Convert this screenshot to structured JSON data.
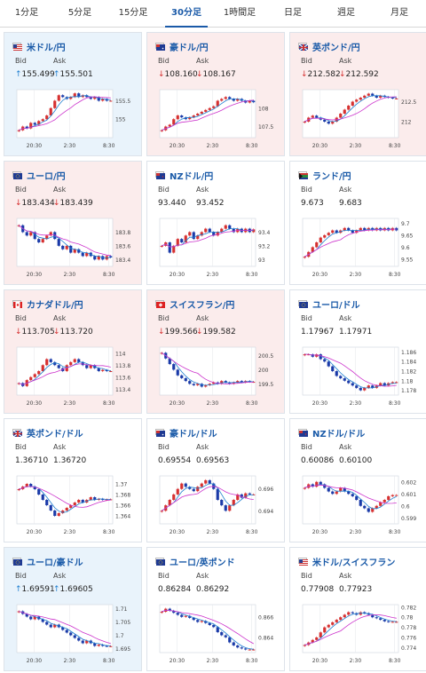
{
  "tabs": [
    {
      "label": "1分足",
      "active": false
    },
    {
      "label": "5分足",
      "active": false
    },
    {
      "label": "15分足",
      "active": false
    },
    {
      "label": "30分足",
      "active": true
    },
    {
      "label": "1時間足",
      "active": false
    },
    {
      "label": "日足",
      "active": false
    },
    {
      "label": "週足",
      "active": false
    },
    {
      "label": "月足",
      "active": false
    }
  ],
  "labels": {
    "bid": "Bid",
    "ask": "Ask"
  },
  "colors": {
    "up": "#1f7fd0",
    "down": "#d63030",
    "bull_candle": "#d63030",
    "bear_candle": "#1a3aa8",
    "ma_line": "#cc33cc",
    "link": "#1a5aa8"
  },
  "cards": [
    {
      "title": "米ドル/円",
      "direction": "up",
      "bid": "155.499",
      "ask": "155.501",
      "flag": "us-flag",
      "chart_data": {
        "type": "candlestick",
        "x_ticks": [
          "20:30",
          "2:30",
          "8:30"
        ],
        "y_ticks": [
          "155.5",
          "155"
        ],
        "ylim": [
          154.5,
          155.8
        ],
        "closes": [
          154.7,
          154.8,
          154.75,
          154.9,
          154.85,
          154.95,
          155.0,
          155.1,
          155.3,
          155.5,
          155.65,
          155.6,
          155.55,
          155.6,
          155.7,
          155.6,
          155.65,
          155.6,
          155.55,
          155.6,
          155.5,
          155.55,
          155.5,
          155.5
        ]
      }
    },
    {
      "title": "豪ドル/円",
      "direction": "down",
      "bid": "108.160",
      "ask": "108.167",
      "flag": "au-flag",
      "chart_data": {
        "type": "candlestick",
        "x_ticks": [
          "20:30",
          "2:30",
          "8:30"
        ],
        "y_ticks": [
          "108",
          "107.5"
        ],
        "ylim": [
          107.2,
          108.5
        ],
        "closes": [
          107.4,
          107.5,
          107.55,
          107.7,
          107.8,
          107.75,
          107.7,
          107.75,
          107.8,
          107.85,
          107.9,
          107.95,
          108.0,
          108.05,
          108.2,
          108.25,
          108.3,
          108.25,
          108.2,
          108.25,
          108.2,
          108.15,
          108.2,
          108.16
        ]
      }
    },
    {
      "title": "英ポンド/円",
      "direction": "down",
      "bid": "212.582",
      "ask": "212.592",
      "flag": "gb-flag",
      "chart_data": {
        "type": "candlestick",
        "x_ticks": [
          "20:30",
          "2:30",
          "8:30"
        ],
        "y_ticks": [
          "212.5",
          "212"
        ],
        "ylim": [
          211.6,
          212.8
        ],
        "closes": [
          212.0,
          212.1,
          212.15,
          212.1,
          212.05,
          212.0,
          211.95,
          212.0,
          212.1,
          212.2,
          212.3,
          212.4,
          212.5,
          212.55,
          212.6,
          212.65,
          212.7,
          212.65,
          212.6,
          212.65,
          212.62,
          212.6,
          212.58,
          212.58
        ]
      }
    },
    {
      "title": "ユーロ/円",
      "direction": "down",
      "bid": "183.434",
      "ask": "183.439",
      "flag": "eu-flag",
      "chart_data": {
        "type": "candlestick",
        "x_ticks": [
          "20:30",
          "2:30",
          "8:30"
        ],
        "y_ticks": [
          "183.8",
          "183.6",
          "183.4"
        ],
        "ylim": [
          183.3,
          184.0
        ],
        "closes": [
          183.9,
          183.8,
          183.75,
          183.8,
          183.7,
          183.65,
          183.7,
          183.75,
          183.8,
          183.7,
          183.6,
          183.55,
          183.6,
          183.5,
          183.55,
          183.5,
          183.45,
          183.5,
          183.45,
          183.4,
          183.45,
          183.4,
          183.45,
          183.43
        ]
      }
    },
    {
      "title": "NZドル/円",
      "direction": "flat",
      "bid": "93.440",
      "ask": "93.452",
      "flag": "nz-flag",
      "chart_data": {
        "type": "candlestick",
        "x_ticks": [
          "20:30",
          "2:30",
          "8:30"
        ],
        "y_ticks": [
          "93.4",
          "93.2",
          "93"
        ],
        "ylim": [
          92.9,
          93.6
        ],
        "closes": [
          93.2,
          93.25,
          93.1,
          93.2,
          93.3,
          93.25,
          93.35,
          93.4,
          93.3,
          93.35,
          93.4,
          93.45,
          93.4,
          93.35,
          93.4,
          93.45,
          93.5,
          93.45,
          93.4,
          93.45,
          93.4,
          93.45,
          93.4,
          93.44
        ]
      }
    },
    {
      "title": "ランド/円",
      "direction": "flat",
      "bid": "9.673",
      "ask": "9.683",
      "flag": "za-flag",
      "chart_data": {
        "type": "candlestick",
        "x_ticks": [
          "20:30",
          "2:30",
          "8:30"
        ],
        "y_ticks": [
          "9.7",
          "9.65",
          "9.6",
          "9.55"
        ],
        "ylim": [
          9.52,
          9.72
        ],
        "closes": [
          9.56,
          9.58,
          9.6,
          9.62,
          9.64,
          9.65,
          9.66,
          9.67,
          9.66,
          9.67,
          9.68,
          9.67,
          9.66,
          9.67,
          9.68,
          9.67,
          9.68,
          9.67,
          9.68,
          9.67,
          9.68,
          9.67,
          9.68,
          9.67
        ]
      }
    },
    {
      "title": "カナダドル/円",
      "direction": "down",
      "bid": "113.705",
      "ask": "113.720",
      "flag": "ca-flag",
      "chart_data": {
        "type": "candlestick",
        "x_ticks": [
          "20:30",
          "2:30",
          "8:30"
        ],
        "y_ticks": [
          "114",
          "113.8",
          "113.6",
          "113.4"
        ],
        "ylim": [
          113.3,
          114.1
        ],
        "closes": [
          113.5,
          113.45,
          113.55,
          113.6,
          113.65,
          113.7,
          113.8,
          113.9,
          113.85,
          113.8,
          113.75,
          113.7,
          113.8,
          113.85,
          113.9,
          113.85,
          113.8,
          113.75,
          113.8,
          113.75,
          113.7,
          113.72,
          113.7,
          113.7
        ]
      }
    },
    {
      "title": "スイスフラン/円",
      "direction": "down",
      "bid": "199.566",
      "ask": "199.582",
      "flag": "ch-flag",
      "chart_data": {
        "type": "candlestick",
        "x_ticks": [
          "20:30",
          "2:30",
          "8:30"
        ],
        "y_ticks": [
          "200.5",
          "200",
          "199.5"
        ],
        "ylim": [
          199.1,
          200.8
        ],
        "closes": [
          200.6,
          200.4,
          200.2,
          200.0,
          199.8,
          199.7,
          199.6,
          199.5,
          199.45,
          199.5,
          199.4,
          199.45,
          199.5,
          199.55,
          199.5,
          199.6,
          199.55,
          199.5,
          199.55,
          199.6,
          199.55,
          199.6,
          199.57,
          199.57
        ]
      }
    },
    {
      "title": "ユーロ/ドル",
      "direction": "flat",
      "bid": "1.17967",
      "ask": "1.17971",
      "flag": "eu-flag",
      "chart_data": {
        "type": "candlestick",
        "x_ticks": [
          "20:30",
          "2:30",
          "8:30"
        ],
        "y_ticks": [
          "1.186",
          "1.184",
          "1.182",
          "1.18",
          "1.178"
        ],
        "ylim": [
          1.177,
          1.187
        ],
        "closes": [
          1.1855,
          1.1855,
          1.185,
          1.1855,
          1.1845,
          1.184,
          1.183,
          1.182,
          1.181,
          1.1805,
          1.18,
          1.1795,
          1.179,
          1.1785,
          1.178,
          1.1785,
          1.179,
          1.1785,
          1.179,
          1.1795,
          1.179,
          1.1795,
          1.1797,
          1.1797
        ]
      }
    },
    {
      "title": "英ポンド/ドル",
      "direction": "flat",
      "bid": "1.36710",
      "ask": "1.36720",
      "flag": "gb-flag",
      "chart_data": {
        "type": "candlestick",
        "x_ticks": [
          "20:30",
          "2:30",
          "8:30"
        ],
        "y_ticks": [
          "1.37",
          "1.368",
          "1.366",
          "1.364"
        ],
        "ylim": [
          1.3625,
          1.3715
        ],
        "closes": [
          1.369,
          1.3695,
          1.37,
          1.3695,
          1.369,
          1.368,
          1.367,
          1.366,
          1.365,
          1.364,
          1.3645,
          1.365,
          1.3655,
          1.366,
          1.3665,
          1.367,
          1.3665,
          1.367,
          1.3675,
          1.367,
          1.3672,
          1.367,
          1.3671,
          1.3671
        ]
      }
    },
    {
      "title": "豪ドル/ドル",
      "direction": "flat",
      "bid": "0.69554",
      "ask": "0.69563",
      "flag": "au-flag",
      "chart_data": {
        "type": "candlestick",
        "x_ticks": [
          "20:30",
          "2:30",
          "8:30"
        ],
        "y_ticks": [
          "0.696",
          "0.694"
        ],
        "ylim": [
          0.6928,
          0.6972
        ],
        "closes": [
          0.694,
          0.6945,
          0.695,
          0.6955,
          0.696,
          0.6965,
          0.6962,
          0.696,
          0.6958,
          0.6962,
          0.6965,
          0.6968,
          0.6965,
          0.696,
          0.695,
          0.6945,
          0.694,
          0.6945,
          0.695,
          0.6955,
          0.6952,
          0.6956,
          0.6955,
          0.6955
        ]
      }
    },
    {
      "title": "NZドル/ドル",
      "direction": "flat",
      "bid": "0.60086",
      "ask": "0.60100",
      "flag": "nz-flag",
      "chart_data": {
        "type": "candlestick",
        "x_ticks": [
          "20:30",
          "2:30",
          "8:30"
        ],
        "y_ticks": [
          "0.602",
          "0.601",
          "0.6",
          "0.599"
        ],
        "ylim": [
          0.5985,
          0.6025
        ],
        "closes": [
          0.6015,
          0.6018,
          0.6016,
          0.602,
          0.6018,
          0.6015,
          0.6012,
          0.601,
          0.6012,
          0.6015,
          0.6012,
          0.601,
          0.6008,
          0.6005,
          0.6,
          0.5998,
          0.5995,
          0.5998,
          0.6,
          0.6003,
          0.6005,
          0.6008,
          0.6009,
          0.6009
        ]
      }
    },
    {
      "title": "ユーロ/豪ドル",
      "direction": "up",
      "bid": "1.69591",
      "ask": "1.69605",
      "flag": "eu-flag",
      "chart_data": {
        "type": "candlestick",
        "x_ticks": [
          "20:30",
          "2:30",
          "8:30"
        ],
        "y_ticks": [
          "1.71",
          "1.705",
          "1.7",
          "1.695"
        ],
        "ylim": [
          1.6935,
          1.7115
        ],
        "closes": [
          1.709,
          1.708,
          1.707,
          1.706,
          1.707,
          1.706,
          1.705,
          1.704,
          1.703,
          1.704,
          1.703,
          1.702,
          1.701,
          1.7,
          1.699,
          1.698,
          1.697,
          1.698,
          1.697,
          1.696,
          1.6965,
          1.696,
          1.6959,
          1.6959
        ]
      }
    },
    {
      "title": "ユーロ/英ポンド",
      "direction": "flat",
      "bid": "0.86284",
      "ask": "0.86292",
      "flag": "eu-flag",
      "chart_data": {
        "type": "candlestick",
        "x_ticks": [
          "20:30",
          "2:30",
          "8:30"
        ],
        "y_ticks": [
          "0.866",
          "0.864"
        ],
        "ylim": [
          0.8625,
          0.8672
        ],
        "closes": [
          0.8665,
          0.8668,
          0.8666,
          0.8664,
          0.8662,
          0.866,
          0.8661,
          0.8659,
          0.8657,
          0.8655,
          0.8656,
          0.8654,
          0.8652,
          0.865,
          0.8645,
          0.8642,
          0.864,
          0.8635,
          0.8632,
          0.863,
          0.8629,
          0.8628,
          0.8628,
          0.8628
        ]
      }
    },
    {
      "title": "米ドル/スイスフラン",
      "direction": "flat",
      "bid": "0.77908",
      "ask": "0.77923",
      "flag": "us-flag",
      "chart_data": {
        "type": "candlestick",
        "x_ticks": [
          "20:30",
          "2:30",
          "8:30"
        ],
        "y_ticks": [
          "0.782",
          "0.78",
          "0.778",
          "0.776",
          "0.774"
        ],
        "ylim": [
          0.773,
          0.7825
        ],
        "closes": [
          0.7745,
          0.775,
          0.7755,
          0.776,
          0.777,
          0.778,
          0.7785,
          0.779,
          0.7795,
          0.78,
          0.7805,
          0.781,
          0.7808,
          0.7805,
          0.781,
          0.7808,
          0.7805,
          0.78,
          0.7798,
          0.7795,
          0.7792,
          0.7791,
          0.7791,
          0.7791
        ]
      }
    }
  ]
}
